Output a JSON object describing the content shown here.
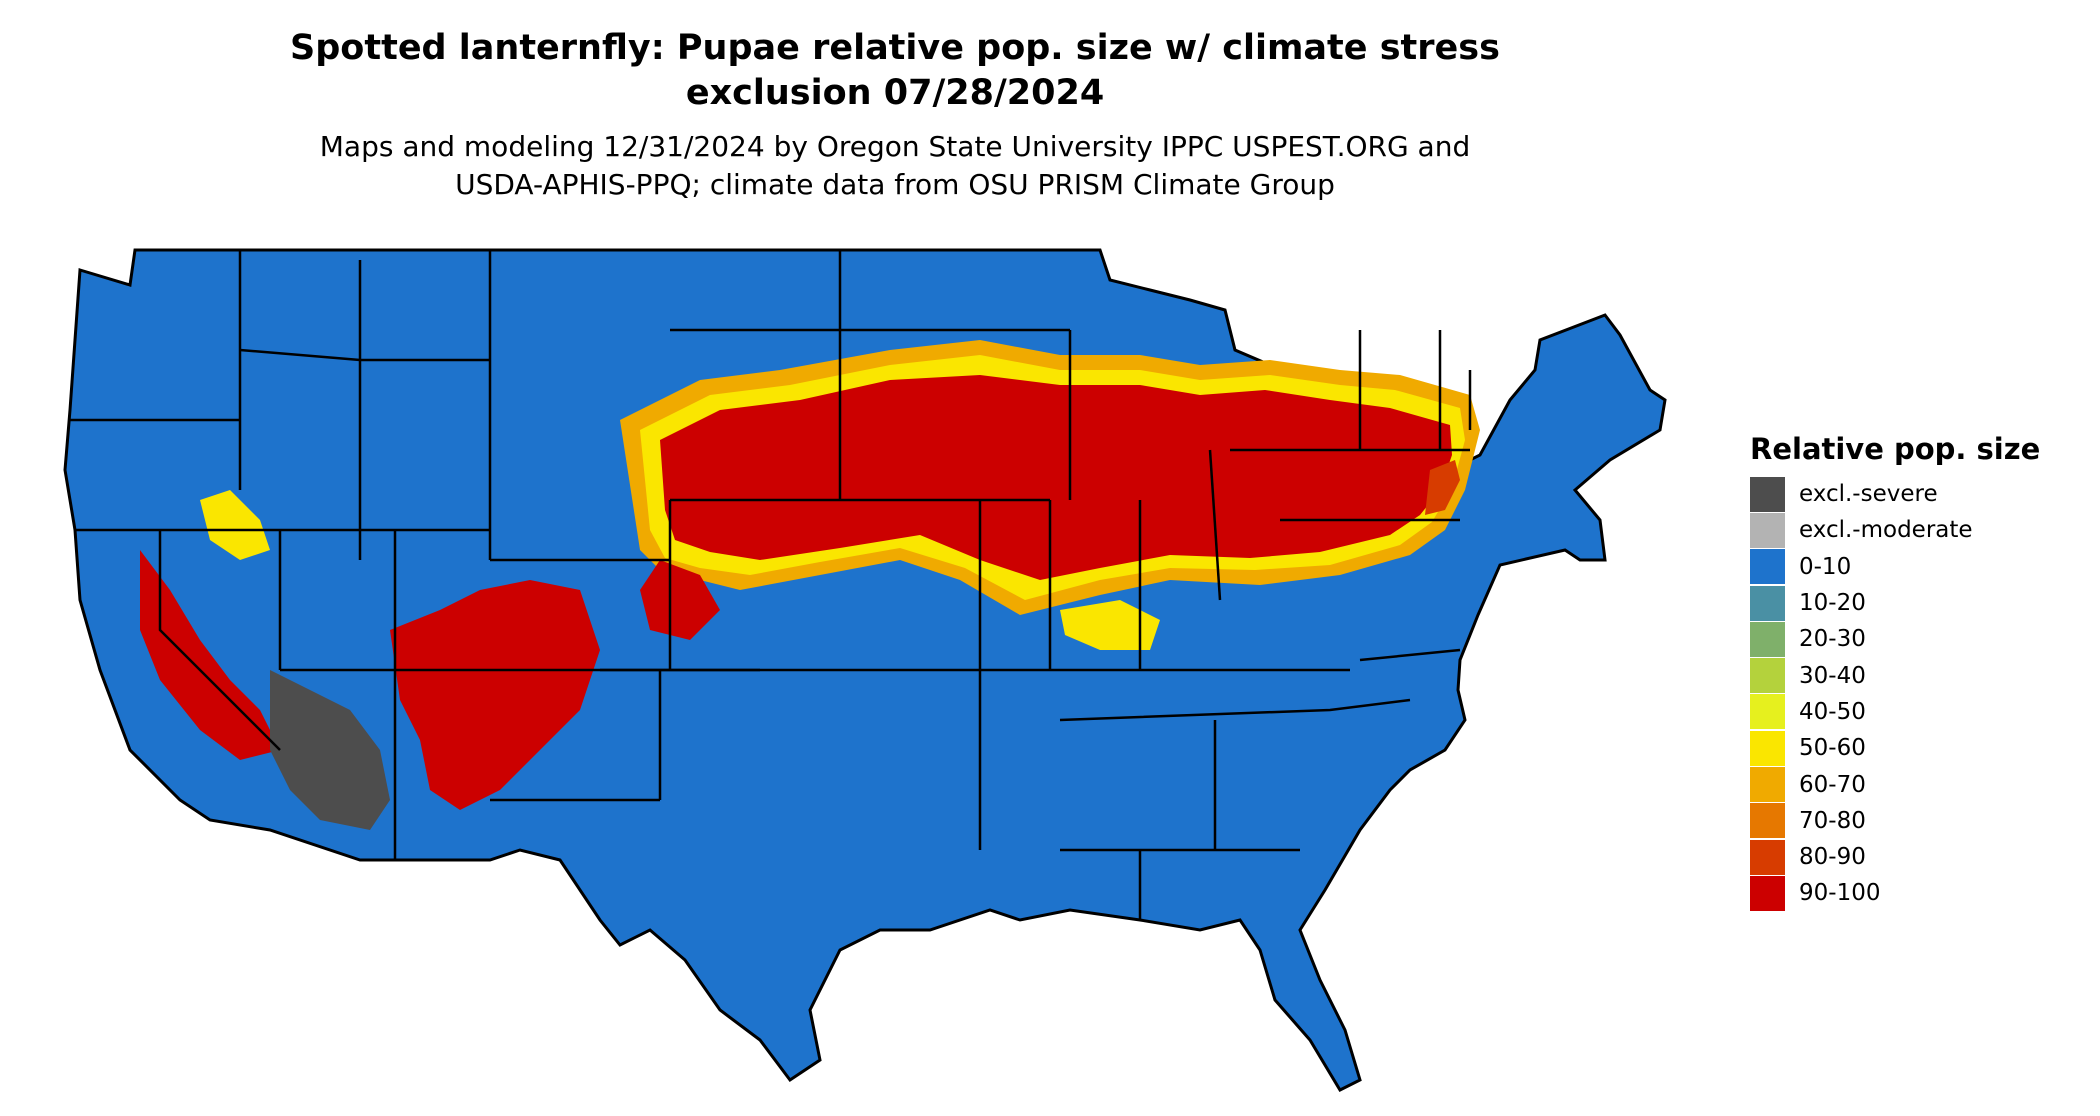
{
  "header": {
    "title_line1": "Spotted lanternfly: Pupae relative pop. size w/ climate stress",
    "title_line2": "exclusion 07/28/2024",
    "subtitle_line1": "Maps and modeling 12/31/2024 by Oregon State University IPPC USPEST.ORG and",
    "subtitle_line2": "USDA-APHIS-PPQ; climate data from OSU PRISM Climate Group"
  },
  "legend": {
    "title": "Relative pop. size",
    "items": [
      {
        "label": "excl.-severe",
        "color": "#4d4d4d"
      },
      {
        "label": "excl.-moderate",
        "color": "#b3b3b3"
      },
      {
        "label": "0-10",
        "color": "#1e73cc"
      },
      {
        "label": "10-20",
        "color": "#4a90a4"
      },
      {
        "label": "20-30",
        "color": "#7fb06a"
      },
      {
        "label": "30-40",
        "color": "#b4d23c"
      },
      {
        "label": "40-50",
        "color": "#e6f01e"
      },
      {
        "label": "50-60",
        "color": "#fae600"
      },
      {
        "label": "60-70",
        "color": "#f0aa00"
      },
      {
        "label": "70-80",
        "color": "#e67800"
      },
      {
        "label": "80-90",
        "color": "#d73c00"
      },
      {
        "label": "90-100",
        "color": "#cc0000"
      }
    ]
  },
  "map": {
    "region": "Contiguous United States",
    "base_color": "#1e73cc",
    "border_color": "#000000"
  }
}
